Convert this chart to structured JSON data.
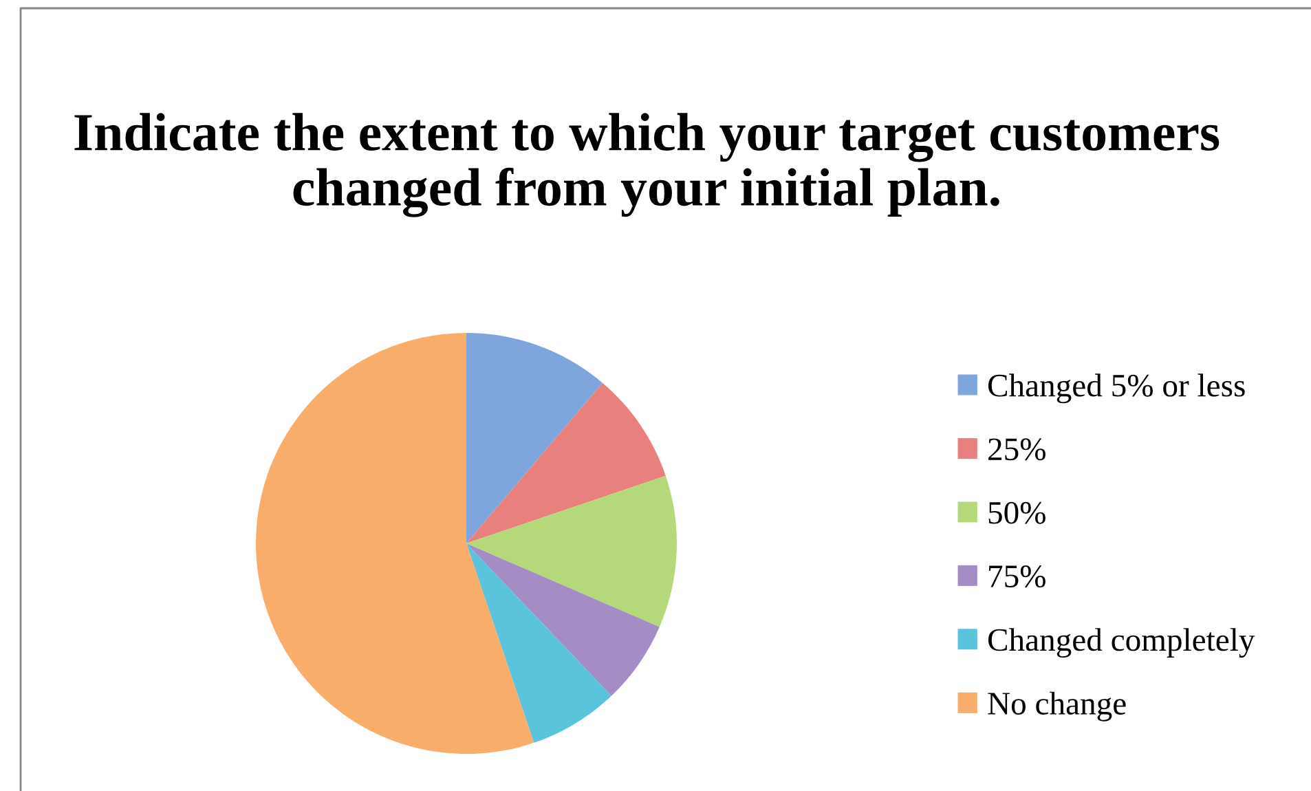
{
  "chart_data": {
    "type": "pie",
    "title": "Indicate the extent to which your target customers changed from your initial plan.",
    "categories": [
      "Changed 5% or less",
      "25%",
      "50%",
      "75%",
      "Changed completely",
      "No change"
    ],
    "values": [
      11.2,
      8.6,
      11.7,
      6.4,
      6.9,
      55.2
    ],
    "colors": [
      "#7fa6dc",
      "#e8807d",
      "#b5d97a",
      "#a48cc4",
      "#5cc3dd",
      "#f8ae6a"
    ],
    "legend": "right"
  }
}
